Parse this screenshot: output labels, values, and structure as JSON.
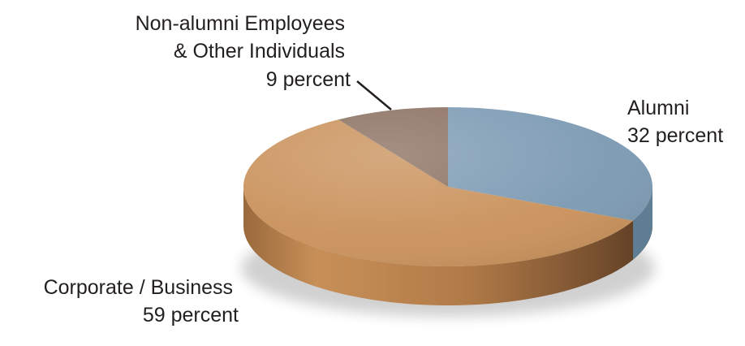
{
  "chart_data": {
    "type": "pie",
    "style": "3d",
    "start": "12 o'clock, clockwise",
    "title": "",
    "slices": [
      {
        "name": "Alumni",
        "value": 32,
        "value_label": "32 percent",
        "label_lines": [
          "Alumni",
          "32 percent"
        ],
        "color": "#7c9ab3"
      },
      {
        "name": "Corporate / Business",
        "value": 59,
        "value_label": "59 percent",
        "label_lines": [
          "Corporate / Business",
          "59 percent"
        ],
        "color": "#c9915a"
      },
      {
        "name": "Non-alumni Employees & Other Individuals",
        "value": 9,
        "value_label": "9 percent",
        "label_lines": [
          "Non-alumni Employees",
          "& Other Individuals",
          "9 percent"
        ],
        "color": "#8a7060"
      }
    ]
  }
}
